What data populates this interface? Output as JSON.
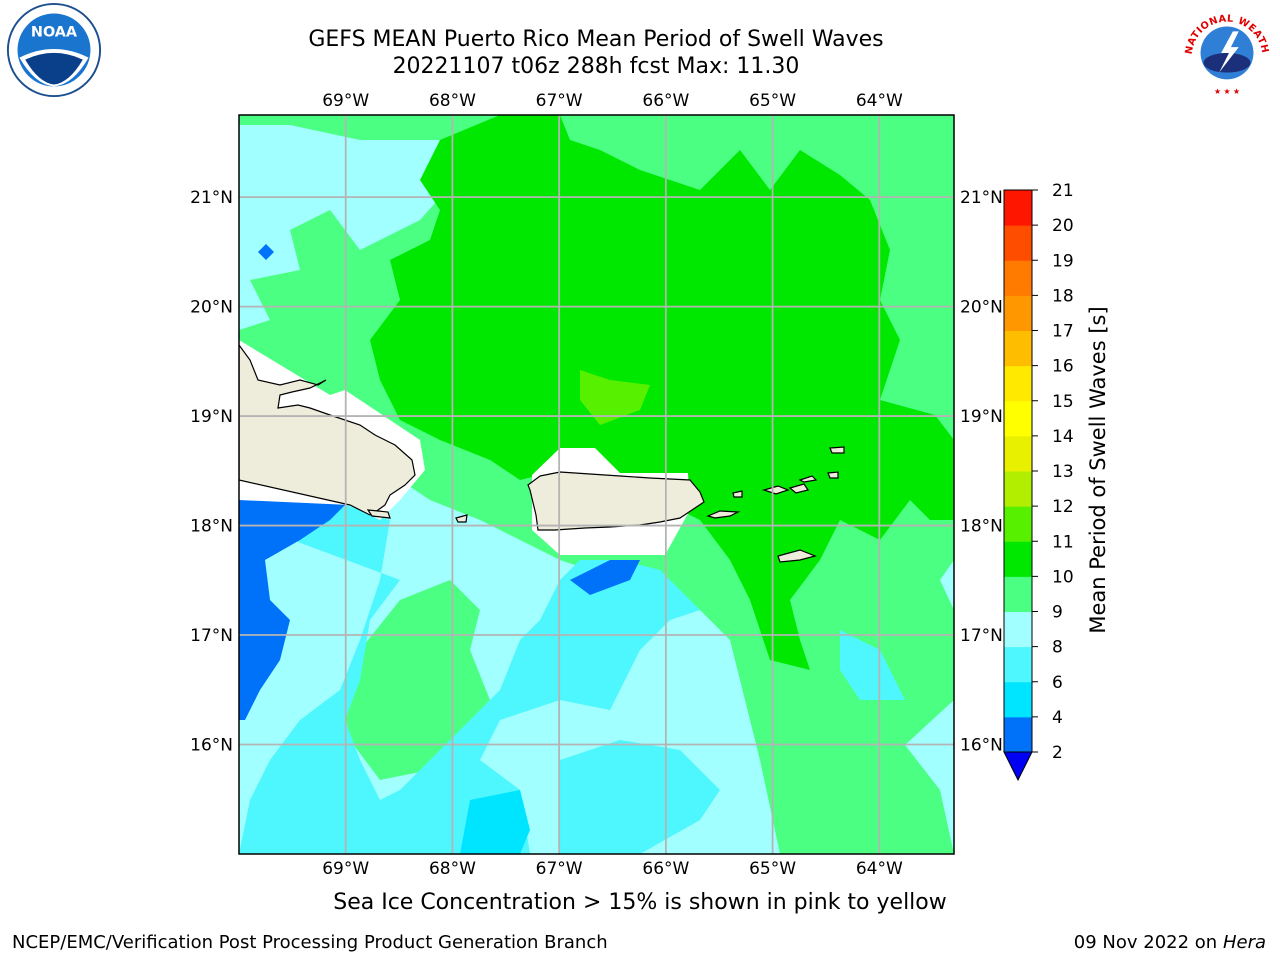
{
  "header": {
    "title_line1": "GEFS MEAN Puerto Rico Mean Period of Swell Waves",
    "title_line2": "20221107 t06z 288h fcst   Max: 11.30"
  },
  "logos": {
    "left": "noaa-logo",
    "right": "national-weather-service-logo",
    "left_text": "NOAA",
    "right_text": "NATIONAL WEATHER SERVICE"
  },
  "map": {
    "lon_labels": [
      "69°W",
      "68°W",
      "67°W",
      "66°W",
      "65°W",
      "64°W"
    ],
    "lat_labels": [
      "21°N",
      "20°N",
      "19°N",
      "18°N",
      "17°N",
      "16°N"
    ],
    "lon_values": [
      -69,
      -68,
      -67,
      -66,
      -65,
      -64
    ],
    "lat_values": [
      21,
      20,
      19,
      18,
      17,
      16
    ],
    "extent": {
      "lon_min": -70.0,
      "lon_max": -63.3,
      "lat_min": 15.0,
      "lat_max": 21.75
    },
    "land_color": "#eeecdb",
    "grid_color": "#b4b4b4"
  },
  "colorbar": {
    "title": "Mean Period of Swell Waves [s]",
    "ticks": [
      "2",
      "4",
      "6",
      "8",
      "9",
      "10",
      "11",
      "12",
      "13",
      "14",
      "15",
      "16",
      "17",
      "18",
      "19",
      "20",
      "21"
    ],
    "colors": [
      "#0071f9",
      "#00e5ff",
      "#4ef6fe",
      "#a2ffff",
      "#4bff83",
      "#00e800",
      "#57f100",
      "#b2ee00",
      "#e8f000",
      "#ffff00",
      "#ffe900",
      "#ffbd00",
      "#ff9700",
      "#ff7b00",
      "#ff4d00",
      "#ff1600"
    ],
    "under_color": "#0000f4"
  },
  "footer": {
    "subtitle": "Sea Ice Concentration > 15% is shown in pink to yellow",
    "credit": "NCEP/EMC/Verification Post Processing Product Generation Branch",
    "date": "09 Nov 2022 on",
    "host": "Hera"
  }
}
